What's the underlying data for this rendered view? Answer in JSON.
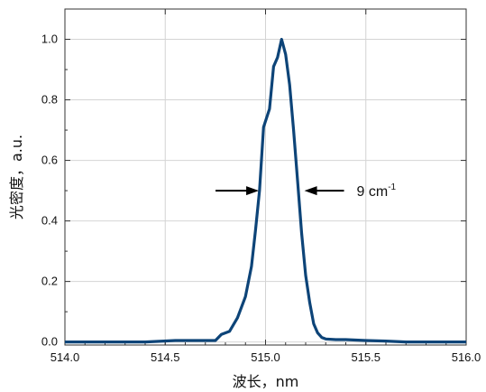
{
  "chart_data": {
    "type": "line",
    "xlabel": "波长，nm",
    "ylabel": "光密度，a.u.",
    "xlim": [
      514.0,
      516.0
    ],
    "ylim": [
      -0.01,
      1.1
    ],
    "grid": true,
    "x_ticks": [
      514.0,
      514.5,
      515.0,
      515.5,
      516.0
    ],
    "x_tick_labels": [
      "514.0",
      "514.5",
      "515.0",
      "515.5",
      "516.0"
    ],
    "y_ticks": [
      0.0,
      0.2,
      0.4,
      0.6,
      0.8,
      1.0
    ],
    "y_tick_labels": [
      "0.0",
      "0.2",
      "0.4",
      "0.6",
      "0.8",
      "1.0"
    ],
    "line_color": "#0d4478",
    "series": [
      {
        "x": [
          514.0,
          514.2,
          514.4,
          514.55,
          514.7,
          514.75,
          514.78,
          514.82,
          514.86,
          514.9,
          514.93,
          514.95,
          514.97,
          514.99,
          515.02,
          515.04,
          515.06,
          515.08,
          515.1,
          515.12,
          515.14,
          515.16,
          515.18,
          515.2,
          515.22,
          515.24,
          515.26,
          515.28,
          515.3,
          515.35,
          515.4,
          515.5,
          515.6,
          515.7,
          515.8,
          515.9,
          516.0
        ],
        "y": [
          0.0,
          0.0,
          0.0,
          0.005,
          0.005,
          0.005,
          0.025,
          0.035,
          0.08,
          0.15,
          0.25,
          0.37,
          0.5,
          0.71,
          0.77,
          0.91,
          0.94,
          1.0,
          0.95,
          0.85,
          0.7,
          0.53,
          0.36,
          0.22,
          0.13,
          0.06,
          0.03,
          0.015,
          0.01,
          0.008,
          0.008,
          0.005,
          0.003,
          0.0,
          0.0,
          0.0,
          0.0
        ]
      }
    ],
    "annotations": [
      {
        "text": "9 cm",
        "superscript": "-1",
        "left_arrow_at": [
          514.98,
          0.5
        ],
        "right_arrow_at": [
          515.18,
          0.5
        ]
      }
    ]
  }
}
